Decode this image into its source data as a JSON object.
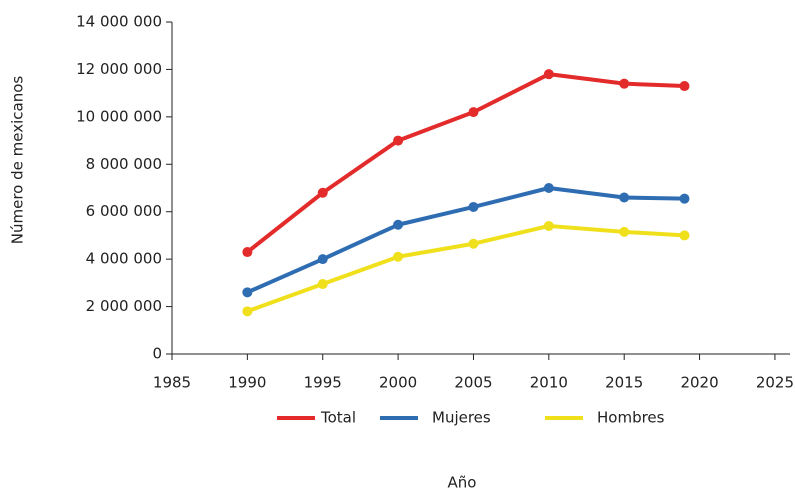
{
  "chart_data": {
    "type": "line",
    "x": [
      1990,
      1995,
      2000,
      2005,
      2010,
      2015,
      2019
    ],
    "series": [
      {
        "name": "Total",
        "color": "#e32b2b",
        "values": [
          4300000,
          6800000,
          9000000,
          10200000,
          11800000,
          11400000,
          11300000
        ]
      },
      {
        "name": "Mujeres",
        "color": "#2f6db3",
        "values": [
          2600000,
          4000000,
          5450000,
          6200000,
          7000000,
          6600000,
          6550000
        ]
      },
      {
        "name": "Hombres",
        "color": "#f0e01b",
        "values": [
          1800000,
          2950000,
          4100000,
          4650000,
          5400000,
          5150000,
          5000000
        ]
      }
    ],
    "xlabel": "Año",
    "ylabel": "Número de mexicanos",
    "xlim": [
      1985,
      2026
    ],
    "xticks": [
      1985,
      1990,
      1995,
      2000,
      2005,
      2010,
      2015,
      2020,
      2025
    ],
    "ylim": [
      0,
      14000000
    ],
    "yticks": [
      0,
      {
        "value": 2000000,
        "label": "2 000 000"
      },
      {
        "value": 4000000,
        "label": "4 000 000"
      },
      {
        "value": 6000000,
        "label": "6 000 000"
      },
      {
        "value": 8000000,
        "label": "8 000 000"
      },
      {
        "value": 10000000,
        "label": "10 000 000"
      },
      {
        "value": 12000000,
        "label": "12 000 000"
      },
      {
        "value": 14000000,
        "label": "14 000 000"
      }
    ],
    "legend": "bottom"
  }
}
